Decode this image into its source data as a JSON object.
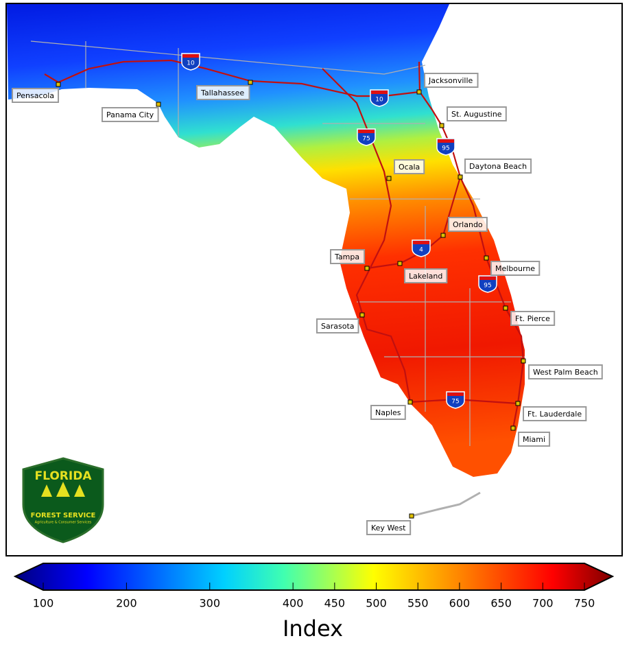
{
  "map": {
    "cities": [
      "Pensacola",
      "Panama City",
      "Tallahassee",
      "Jacksonville",
      "St. Augustine",
      "Ocala",
      "Daytona Beach",
      "Orlando",
      "Tampa",
      "Lakeland",
      "Melbourne",
      "Ft. Pierce",
      "Sarasota",
      "West Palm Beach",
      "Naples",
      "Ft. Lauderdale",
      "Miami",
      "Key West"
    ],
    "shields": [
      "10",
      "10",
      "75",
      "95",
      "4",
      "95",
      "75"
    ]
  },
  "logo": {
    "title": "FLORIDA",
    "subtitle": "FOREST SERVICE",
    "tagline": "Agriculture & Consumer Services"
  },
  "colorbar": {
    "label": "Index",
    "range": [
      100,
      750
    ],
    "ticks": [
      100,
      200,
      300,
      400,
      450,
      500,
      550,
      600,
      650,
      700,
      750
    ]
  }
}
